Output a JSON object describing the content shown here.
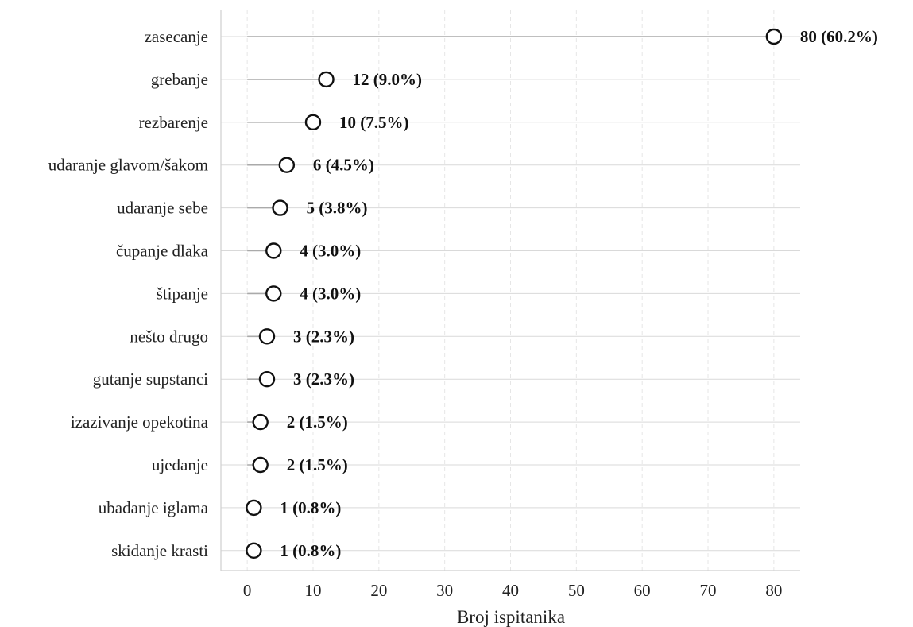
{
  "chart_data": {
    "type": "lollipop",
    "orientation": "horizontal",
    "title": "",
    "xlabel": "Broj ispitanika",
    "ylabel": "",
    "xlim": [
      -4,
      84
    ],
    "xticks": [
      0,
      10,
      20,
      30,
      40,
      50,
      60,
      70,
      80
    ],
    "grid": {
      "x": "dashed",
      "y": "solid"
    },
    "categories": [
      "zasecanje",
      "grebanje",
      "rezbarenje",
      "udaranje glavom/šakom",
      "udaranje sebe",
      "čupanje dlaka",
      "štipanje",
      "nešto drugo",
      "gutanje supstanci",
      "izazivanje opekotina",
      "ujedanje",
      "ubadanje iglama",
      "skidanje krasti"
    ],
    "values": [
      80,
      12,
      10,
      6,
      5,
      4,
      4,
      3,
      3,
      2,
      2,
      1,
      1
    ],
    "labels": [
      "80 (60.2%)",
      "12 (9.0%)",
      "10 (7.5%)",
      "6 (4.5%)",
      "5 (3.8%)",
      "4 (3.0%)",
      "4 (3.0%)",
      "3 (2.3%)",
      "3 (2.3%)",
      "2 (1.5%)",
      "2 (1.5%)",
      "1 (0.8%)",
      "1 (0.8%)"
    ],
    "colors": {
      "marker_edge": "#111111",
      "marker_fill": "#ffffff",
      "stem": "#aaaaaa",
      "row_line": "#d9d9d9",
      "grid": "#e6e6e6",
      "spine": "#cfcfcf"
    }
  }
}
